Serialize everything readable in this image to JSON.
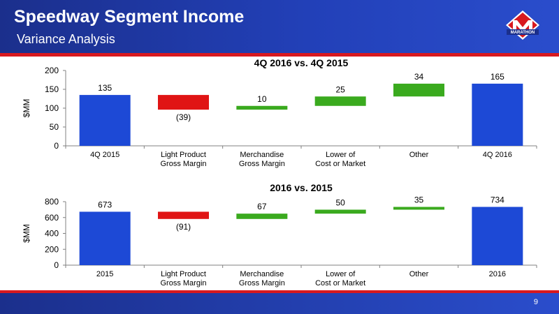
{
  "slide": {
    "title": "Speedway Segment Income",
    "subtitle": "Variance Analysis",
    "page_number": "9",
    "logo_text": "MARATHON"
  },
  "colors": {
    "header": "#2240b8",
    "accent_red": "#d8191f",
    "base_bar": "#1d49d6",
    "increase_bar": "#3aaa1e",
    "decrease_bar": "#e01414"
  },
  "chart_data": [
    {
      "type": "bar",
      "subtype": "waterfall",
      "title": "4Q 2016 vs. 4Q 2015",
      "ylabel": "$MM",
      "ylim": [
        0,
        200
      ],
      "yticks": [
        0,
        50,
        100,
        150,
        200
      ],
      "categories": [
        [
          "4Q 2015"
        ],
        [
          "Light Product",
          "Gross Margin"
        ],
        [
          "Merchandise",
          "Gross Margin"
        ],
        [
          "Lower of",
          "Cost or Market"
        ],
        [
          "Other"
        ],
        [
          "4Q 2016"
        ]
      ],
      "bars": [
        {
          "kind": "total",
          "start": 0,
          "end": 135,
          "label": "135"
        },
        {
          "kind": "decrease",
          "start": 135,
          "end": 96,
          "label": "(39)"
        },
        {
          "kind": "increase",
          "start": 96,
          "end": 106,
          "label": "10"
        },
        {
          "kind": "increase",
          "start": 106,
          "end": 131,
          "label": "25"
        },
        {
          "kind": "increase",
          "start": 131,
          "end": 165,
          "label": "34"
        },
        {
          "kind": "total",
          "start": 0,
          "end": 165,
          "label": "165"
        }
      ]
    },
    {
      "type": "bar",
      "subtype": "waterfall",
      "title": "2016 vs. 2015",
      "ylabel": "$MM",
      "ylim": [
        0,
        800
      ],
      "yticks": [
        0,
        200,
        400,
        600,
        800
      ],
      "categories": [
        [
          "2015"
        ],
        [
          "Light Product",
          "Gross Margin"
        ],
        [
          "Merchandise",
          "Gross Margin"
        ],
        [
          "Lower of",
          "Cost or Market"
        ],
        [
          "Other"
        ],
        [
          "2016"
        ]
      ],
      "bars": [
        {
          "kind": "total",
          "start": 0,
          "end": 673,
          "label": "673"
        },
        {
          "kind": "decrease",
          "start": 673,
          "end": 582,
          "label": "(91)"
        },
        {
          "kind": "increase",
          "start": 582,
          "end": 649,
          "label": "67"
        },
        {
          "kind": "increase",
          "start": 649,
          "end": 699,
          "label": "50"
        },
        {
          "kind": "increase",
          "start": 699,
          "end": 734,
          "label": "35"
        },
        {
          "kind": "total",
          "start": 0,
          "end": 734,
          "label": "734"
        }
      ]
    }
  ]
}
